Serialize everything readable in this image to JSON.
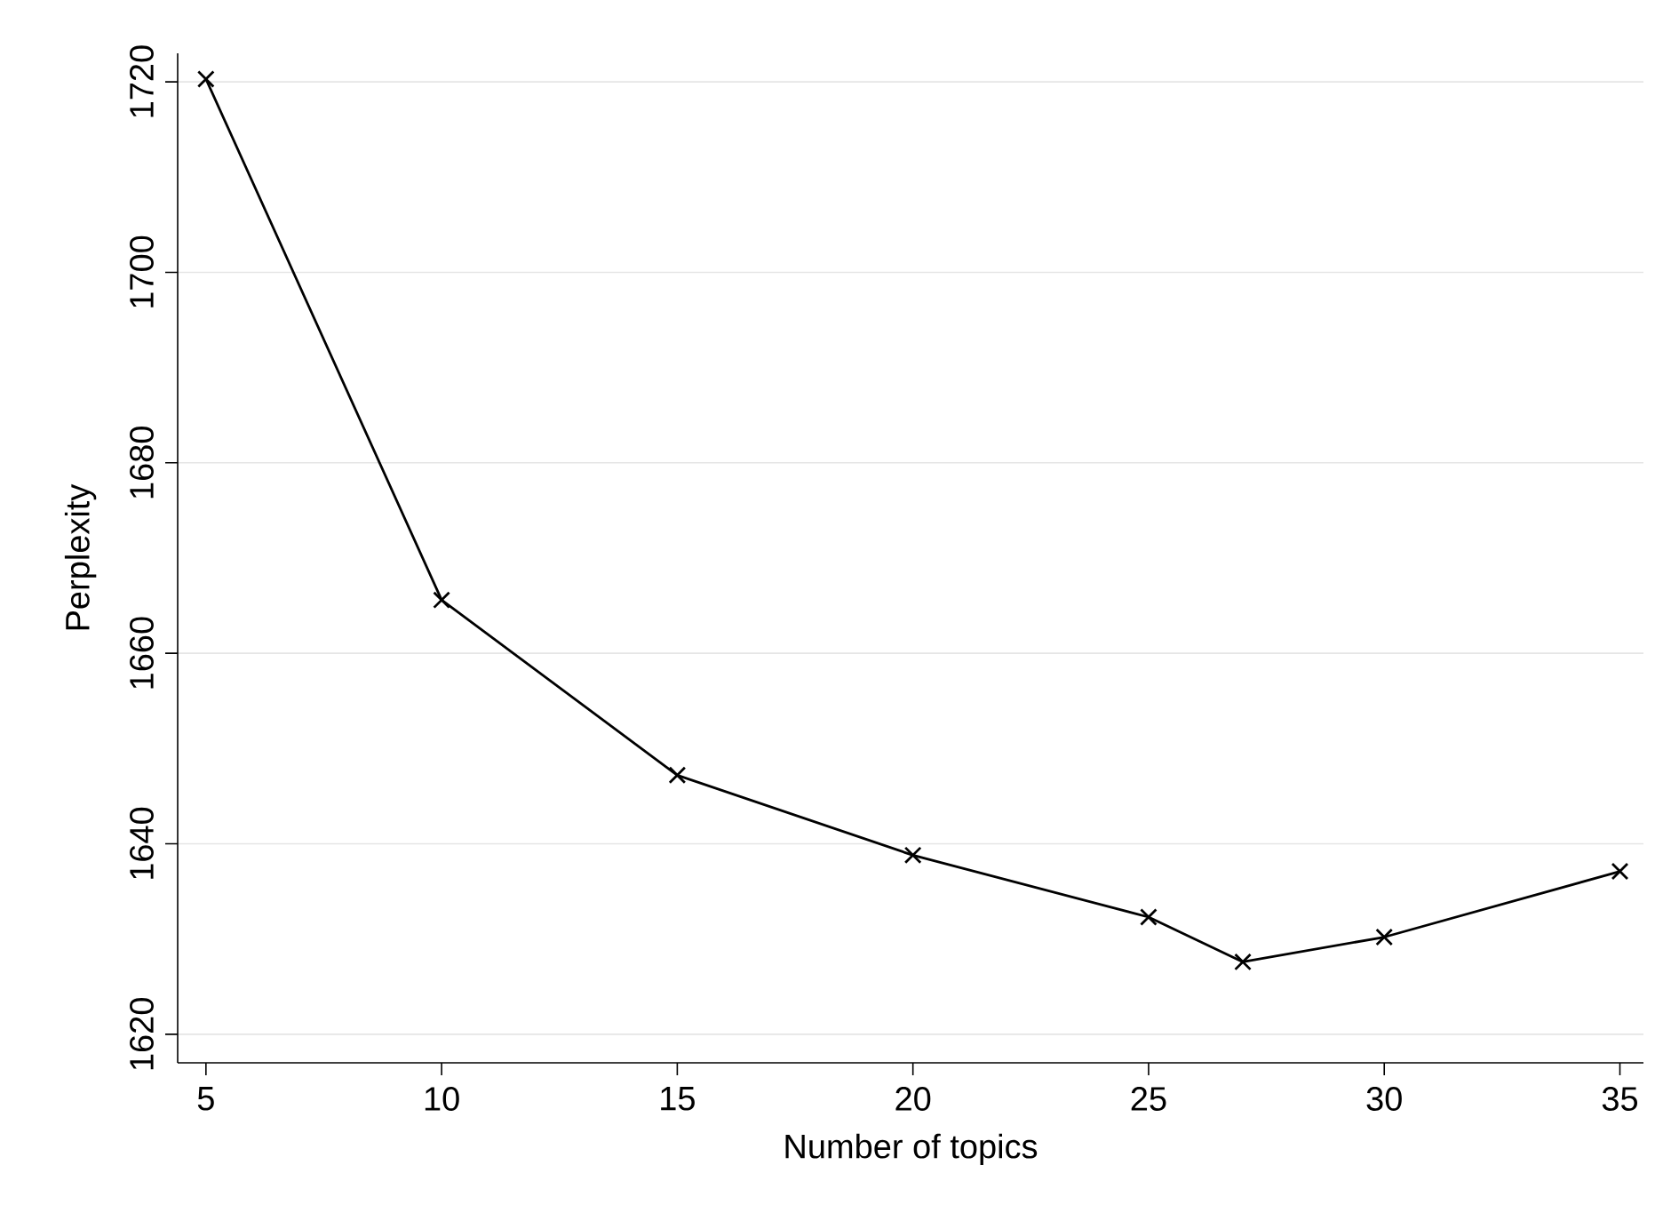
{
  "chart_data": {
    "type": "line",
    "xlabel": "Number of topics",
    "ylabel": "Perplexity",
    "x": [
      5,
      10,
      15,
      20,
      25,
      27,
      30,
      35
    ],
    "values": [
      1720.3,
      1665.6,
      1647.2,
      1638.8,
      1632.3,
      1627.6,
      1630.2,
      1637.1
    ],
    "color": "#000000",
    "marker": "cross",
    "line_style": "solid",
    "xlim": [
      4.4,
      35.5
    ],
    "ylim": [
      1617,
      1723
    ],
    "xticks": [
      5,
      10,
      15,
      20,
      25,
      30,
      35
    ],
    "yticks": [
      1620,
      1640,
      1660,
      1680,
      1700,
      1720
    ],
    "grid": "y"
  }
}
